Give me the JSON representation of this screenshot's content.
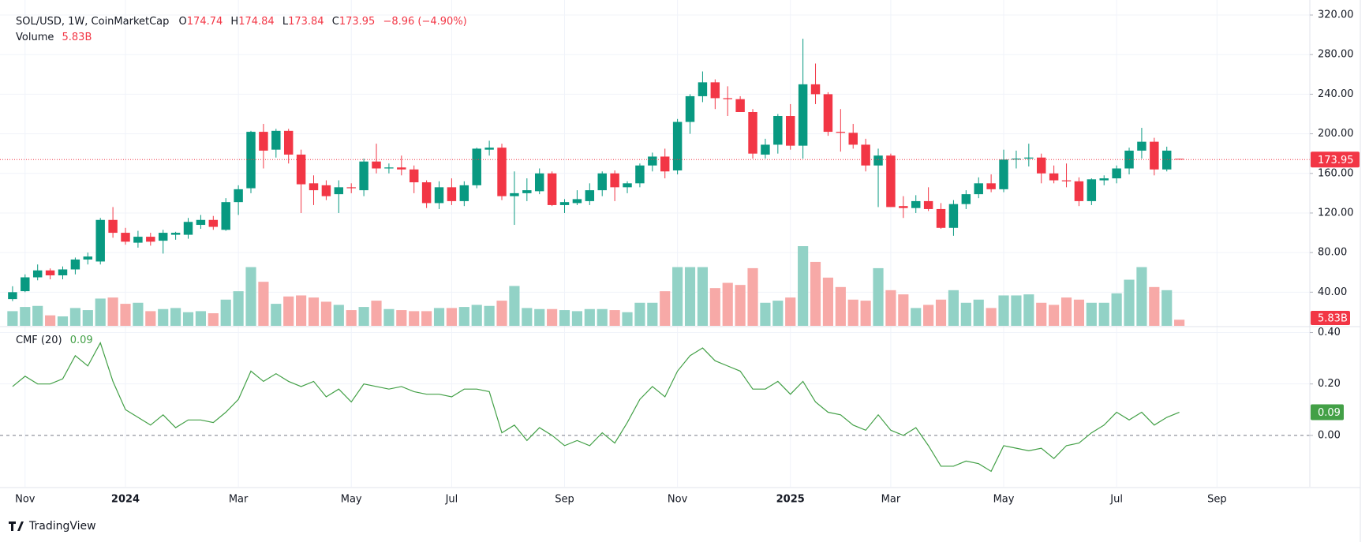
{
  "chart_data": [
    {
      "type": "candlestick",
      "title": "SOL/USD, 1W, CoinMarketCap",
      "ohlc_labels": [
        "O",
        "H",
        "L",
        "C"
      ],
      "change": "−8.96 (−4.90%)",
      "up_color": "#089981",
      "down_color": "#f23645",
      "open": [
        33,
        41,
        55,
        62,
        57,
        63,
        73,
        71,
        113,
        100,
        90,
        96,
        92,
        98,
        98,
        108,
        113,
        103,
        131,
        145,
        202,
        184,
        203,
        179,
        150,
        148,
        139,
        146,
        143,
        172,
        165,
        166,
        164,
        151,
        130,
        146,
        132,
        148,
        184,
        186,
        137,
        140,
        142,
        160,
        128,
        130,
        132,
        143,
        160,
        146,
        150,
        168,
        177,
        163,
        212,
        238,
        252,
        236,
        235,
        222,
        179,
        189,
        218,
        188,
        250,
        240,
        202,
        201,
        189,
        168,
        178,
        127,
        125,
        132,
        124,
        105,
        129,
        139,
        150,
        144,
        174,
        175,
        176,
        160,
        153,
        152,
        132,
        153,
        155,
        165,
        183,
        192,
        164,
        174.74
      ],
      "high": [
        46,
        58,
        68,
        64,
        66,
        75,
        80,
        115,
        126,
        105,
        102,
        100,
        103,
        101,
        115,
        118,
        117,
        135,
        148,
        203,
        210,
        205,
        205,
        184,
        158,
        153,
        153,
        150,
        175,
        190,
        170,
        178,
        168,
        153,
        152,
        155,
        152,
        186,
        193,
        190,
        162,
        155,
        165,
        162,
        134,
        143,
        150,
        162,
        163,
        152,
        170,
        181,
        185,
        215,
        240,
        263,
        255,
        248,
        238,
        225,
        195,
        220,
        230,
        296,
        271,
        242,
        225,
        210,
        195,
        185,
        180,
        137,
        138,
        146,
        130,
        133,
        143,
        156,
        159,
        184,
        183,
        190,
        180,
        168,
        170,
        156,
        155,
        158,
        168,
        186,
        206,
        196,
        187,
        174.84
      ],
      "low": [
        31,
        40,
        52,
        53,
        53,
        58,
        68,
        68,
        95,
        88,
        85,
        87,
        79,
        93,
        94,
        104,
        103,
        102,
        118,
        140,
        165,
        176,
        170,
        120,
        128,
        133,
        120,
        140,
        137,
        160,
        160,
        158,
        140,
        125,
        124,
        128,
        127,
        145,
        178,
        133,
        108,
        132,
        139,
        127,
        120,
        128,
        128,
        137,
        132,
        140,
        146,
        162,
        155,
        159,
        200,
        232,
        225,
        218,
        222,
        175,
        175,
        180,
        184,
        175,
        230,
        198,
        182,
        185,
        162,
        126,
        126,
        115,
        120,
        122,
        104,
        97,
        124,
        135,
        141,
        141,
        165,
        167,
        150,
        150,
        146,
        127,
        128,
        148,
        150,
        159,
        175,
        158,
        162,
        173.84
      ],
      "close": [
        40,
        55,
        62,
        57,
        63,
        73,
        76,
        113,
        100,
        91,
        96,
        91,
        100,
        100,
        111,
        113,
        106,
        131,
        144,
        202,
        183,
        203,
        179,
        149,
        143,
        137,
        146,
        145,
        172,
        165,
        166,
        164,
        151,
        130,
        146,
        132,
        148,
        185,
        186,
        137,
        140,
        143,
        160,
        128,
        131,
        134,
        143,
        160,
        146,
        150,
        168,
        177,
        162,
        212,
        238,
        252,
        236,
        235,
        222,
        180,
        189,
        218,
        188,
        250,
        240,
        202,
        201,
        189,
        168,
        178,
        126,
        125,
        132,
        124,
        105,
        129,
        139,
        150,
        144,
        174,
        175,
        176,
        160,
        153,
        152,
        132,
        154,
        155,
        165,
        183,
        192,
        164,
        183,
        173.95
      ],
      "volume": {
        "name": "Volume",
        "up_color": "#92d2c6",
        "down_color": "#f7a9a7",
        "values": [
          14,
          18,
          19,
          10,
          9,
          17,
          15,
          26,
          27,
          21,
          22,
          14,
          16,
          17,
          13,
          14,
          12,
          25,
          33,
          56,
          42,
          21,
          28,
          29,
          27,
          23,
          20,
          15,
          18,
          24,
          16,
          15,
          14,
          14,
          17,
          17,
          18,
          20,
          19,
          24,
          38,
          17,
          16,
          16,
          15,
          14,
          16,
          16,
          15,
          13,
          22,
          22,
          33,
          56,
          56,
          56,
          36,
          41,
          39,
          55,
          22,
          24,
          27,
          76,
          61,
          46,
          37,
          25,
          24,
          55,
          34,
          30,
          17,
          20,
          25,
          34,
          22,
          25,
          17,
          29,
          29,
          30,
          22,
          20,
          27,
          25,
          22,
          22,
          31,
          44,
          56,
          37,
          34,
          5.83
        ],
        "value_labels": [
          null,
          null,
          null,
          null,
          null,
          null,
          null,
          null,
          null,
          null,
          null,
          null,
          null,
          null,
          null,
          null,
          null,
          null,
          null,
          null,
          null,
          null,
          null,
          null,
          null,
          null,
          null,
          null,
          null,
          null,
          null,
          null,
          null,
          null,
          null,
          null,
          null,
          null,
          null,
          null,
          null,
          null,
          null,
          null,
          null,
          null,
          null,
          null,
          null,
          null,
          null,
          null,
          null,
          null,
          null,
          null,
          null,
          null,
          null,
          null,
          null,
          null,
          null,
          null,
          null,
          null,
          null,
          null,
          null,
          null,
          null,
          null,
          null,
          null,
          null,
          null,
          null,
          null,
          null,
          null,
          null,
          null,
          null,
          null,
          null,
          null,
          null,
          null,
          null,
          null,
          null,
          null,
          null,
          "5.83B"
        ]
      },
      "xlim": [
        -1,
        103.4
      ],
      "xticks": [
        {
          "value": 1,
          "label": "Nov"
        },
        {
          "value": 9,
          "label": "2024"
        },
        {
          "value": 18,
          "label": "Mar"
        },
        {
          "value": 27,
          "label": "May"
        },
        {
          "value": 35,
          "label": "Jul"
        },
        {
          "value": 44,
          "label": "Sep"
        },
        {
          "value": 53,
          "label": "Nov"
        },
        {
          "value": 62,
          "label": "2025"
        },
        {
          "value": 70,
          "label": "Mar"
        },
        {
          "value": 79,
          "label": "May"
        },
        {
          "value": 88,
          "label": "Jul"
        },
        {
          "value": 96,
          "label": "Sep"
        }
      ],
      "ylim": [
        6,
        328
      ],
      "yticks": [
        {
          "value": 40,
          "label": "40.00"
        },
        {
          "value": 80,
          "label": "80.00"
        },
        {
          "value": 120,
          "label": "120.00"
        },
        {
          "value": 160,
          "label": "160.00"
        },
        {
          "value": 200,
          "label": "200.00"
        },
        {
          "value": 240,
          "label": "240.00"
        },
        {
          "value": 280,
          "label": "280.00"
        },
        {
          "value": 320,
          "label": "320.00"
        }
      ],
      "grid": true
    },
    {
      "type": "line",
      "title": "CMF (20)",
      "color": "#43a047",
      "values": [
        0.19,
        0.23,
        0.2,
        0.2,
        0.22,
        0.31,
        0.27,
        0.36,
        0.21,
        0.1,
        0.07,
        0.04,
        0.08,
        0.03,
        0.06,
        0.06,
        0.05,
        0.09,
        0.14,
        0.25,
        0.21,
        0.24,
        0.21,
        0.19,
        0.21,
        0.15,
        0.18,
        0.13,
        0.2,
        0.19,
        0.18,
        0.19,
        0.17,
        0.16,
        0.16,
        0.15,
        0.18,
        0.18,
        0.17,
        0.01,
        0.04,
        -0.02,
        0.03,
        0,
        -0.04,
        -0.02,
        -0.04,
        0.01,
        -0.03,
        0.05,
        0.14,
        0.19,
        0.15,
        0.25,
        0.31,
        0.34,
        0.29,
        0.27,
        0.25,
        0.18,
        0.18,
        0.21,
        0.16,
        0.21,
        0.13,
        0.09,
        0.08,
        0.04,
        0.02,
        0.08,
        0.02,
        0,
        0.03,
        -0.04,
        -0.12,
        -0.12,
        -0.1,
        -0.11,
        -0.14,
        -0.04,
        -0.05,
        -0.06,
        -0.05,
        -0.09,
        -0.04,
        -0.03,
        0.01,
        0.04,
        0.09,
        0.06,
        0.09,
        0.04,
        0.07,
        0.09
      ],
      "ylim": [
        -0.2,
        0.42
      ],
      "yticks": [
        {
          "value": 0,
          "label": "0.00"
        },
        {
          "value": 0.2,
          "label": "0.20"
        },
        {
          "value": 0.4,
          "label": "0.40"
        }
      ],
      "grid": true
    }
  ],
  "footer": "TradingView"
}
